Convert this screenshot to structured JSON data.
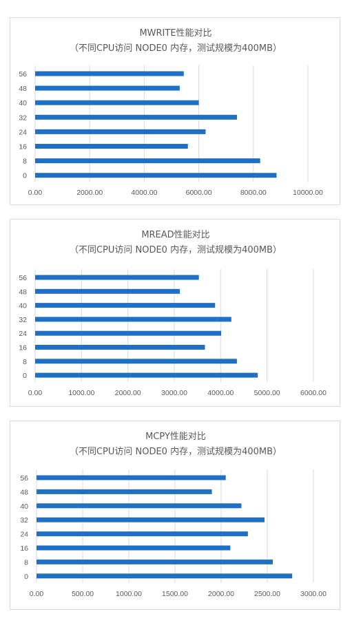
{
  "chart_data": [
    {
      "type": "bar",
      "orientation": "horizontal",
      "title": "MWRITE性能对比",
      "subtitle": "（不同CPU访问 NODE0 内存，测试规模为400MB）",
      "categories": [
        "56",
        "48",
        "40",
        "32",
        "24",
        "16",
        "8",
        "0"
      ],
      "values": [
        5450,
        5300,
        6000,
        7400,
        6250,
        5600,
        8250,
        8850
      ],
      "xlim": [
        0,
        10000
      ],
      "xticks": [
        "0.00",
        "2000.00",
        "4000.00",
        "6000.00",
        "8000.00",
        "10000.00"
      ],
      "grid": true,
      "color": "#1F6FC4"
    },
    {
      "type": "bar",
      "orientation": "horizontal",
      "title": "MREAD性能对比",
      "subtitle": "（不同CPU访问 NODE0 内存，测试规模为400MB）",
      "categories": [
        "56",
        "48",
        "40",
        "32",
        "24",
        "16",
        "8",
        "0"
      ],
      "values": [
        3530,
        3120,
        3880,
        4230,
        4010,
        3660,
        4350,
        4800
      ],
      "xlim": [
        0,
        6000
      ],
      "xticks": [
        "0.00",
        "1000.00",
        "2000.00",
        "3000.00",
        "4000.00",
        "5000.00",
        "6000.00"
      ],
      "grid": true,
      "color": "#1F6FC4"
    },
    {
      "type": "bar",
      "orientation": "horizontal",
      "title": "MCPY性能对比",
      "subtitle": "（不同CPU访问 NODE0 内存，测试规模为400MB）",
      "categories": [
        "56",
        "48",
        "40",
        "32",
        "24",
        "16",
        "8",
        "0"
      ],
      "values": [
        2050,
        1900,
        2220,
        2470,
        2290,
        2100,
        2560,
        2770
      ],
      "xlim": [
        0,
        3000
      ],
      "xticks": [
        "0.00",
        "500.00",
        "1000.00",
        "1500.00",
        "2000.00",
        "2500.00",
        "3000.00"
      ],
      "grid": true,
      "color": "#1F6FC4"
    }
  ]
}
